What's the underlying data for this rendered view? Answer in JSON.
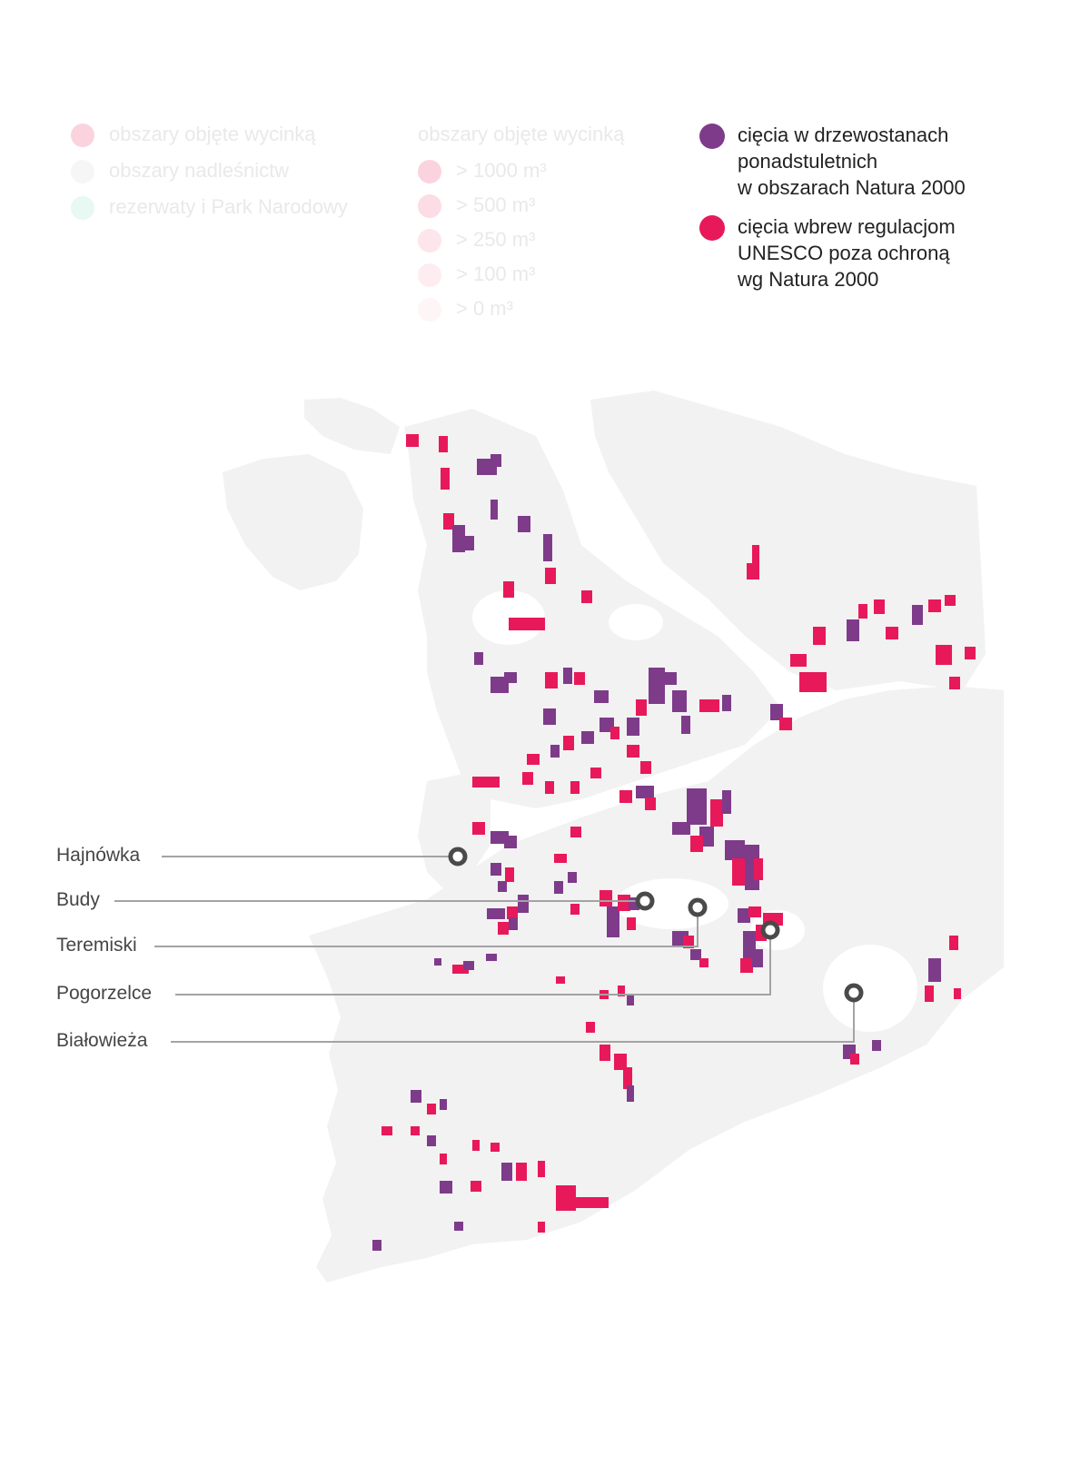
{
  "legend_left": {
    "items": [
      {
        "label": "obszary objęte wycinką",
        "color": "#fbd3de"
      },
      {
        "label": "obszary nadleśnictw",
        "color": "#f6f6f6"
      },
      {
        "label": "rezerwaty i Park Narodowy",
        "color": "#e8f8f3"
      }
    ]
  },
  "legend_middle": {
    "title": "obszary objęte wycinką",
    "items": [
      {
        "label": "> 1000 m³",
        "color": "#fbd3de"
      },
      {
        "label": "> 500 m³",
        "color": "#fcdde5"
      },
      {
        "label": "> 250 m³",
        "color": "#fce5eb"
      },
      {
        "label": "> 100 m³",
        "color": "#fdedf1"
      },
      {
        "label": "> 0 m³",
        "color": "#fef5f7"
      }
    ]
  },
  "legend_right": {
    "items": [
      {
        "lines": [
          "cięcia w drzewostanach",
          "ponadstuletnich",
          "w obszarach Natura 2000"
        ],
        "color": "#7e3b8a"
      },
      {
        "lines": [
          "cięcia wbrew regulacjom",
          "UNESCO poza ochroną",
          "wg Natura 2000"
        ],
        "color": "#e8195a"
      }
    ]
  },
  "places": [
    {
      "name": "Hajnówka"
    },
    {
      "name": "Budy"
    },
    {
      "name": "Teremiski"
    },
    {
      "name": "Pogorzelce"
    },
    {
      "name": "Białowieża"
    }
  ],
  "colors": {
    "forest": "#f2f2f2",
    "purple": "#7e3b8a",
    "pink": "#e8195a",
    "leader": "#a3a3a3",
    "marker": "#4a4a4a"
  }
}
